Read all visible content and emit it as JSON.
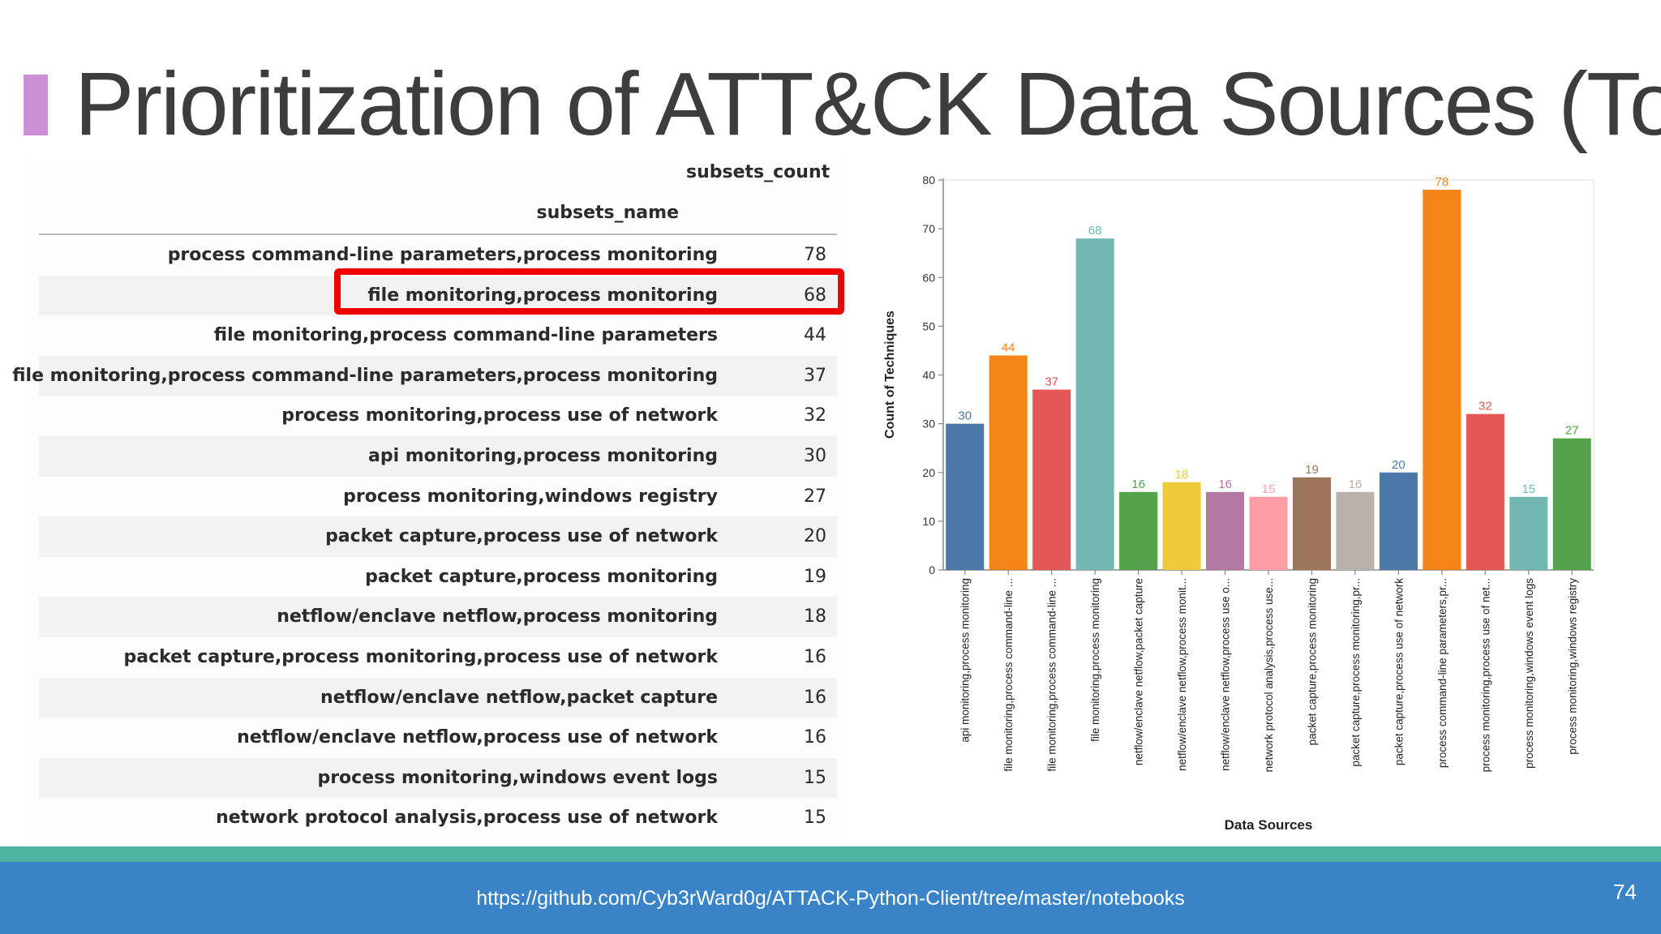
{
  "slide": {
    "title": "Prioritization of ATT&CK Data Sources (Top",
    "page_number": "74",
    "url": "https://github.com/Cyb3rWard0g/ATTACK-Python-Client/tree/master/notebooks"
  },
  "table": {
    "count_header": "subsets_count",
    "name_header": "subsets_name",
    "highlighted_row": "file monitoring,process monitoring",
    "rows": [
      {
        "name": "process command-line parameters,process monitoring",
        "count": "78"
      },
      {
        "name": "file monitoring,process monitoring",
        "count": "68"
      },
      {
        "name": "file monitoring,process command-line parameters",
        "count": "44"
      },
      {
        "name": "file monitoring,process command-line parameters,process monitoring",
        "count": "37"
      },
      {
        "name": "process monitoring,process use of network",
        "count": "32"
      },
      {
        "name": "api monitoring,process monitoring",
        "count": "30"
      },
      {
        "name": "process monitoring,windows registry",
        "count": "27"
      },
      {
        "name": "packet capture,process use of network",
        "count": "20"
      },
      {
        "name": "packet capture,process monitoring",
        "count": "19"
      },
      {
        "name": "netflow/enclave netflow,process monitoring",
        "count": "18"
      },
      {
        "name": "packet capture,process monitoring,process use of network",
        "count": "16"
      },
      {
        "name": "netflow/enclave netflow,packet capture",
        "count": "16"
      },
      {
        "name": "netflow/enclave netflow,process use of network",
        "count": "16"
      },
      {
        "name": "process monitoring,windows event logs",
        "count": "15"
      },
      {
        "name": "network protocol analysis,process use of network",
        "count": "15"
      }
    ]
  },
  "chart_data": {
    "type": "bar",
    "xlabel": "Data Sources",
    "ylabel": "Count of Techniques",
    "ylim": [
      0,
      80
    ],
    "yticks": [
      "0",
      "10",
      "20",
      "30",
      "40",
      "50",
      "60",
      "70",
      "80"
    ],
    "grid": false,
    "categories": [
      "api monitoring,process monitoring",
      "file monitoring,process command-line ...",
      "file monitoring,process command-line ...",
      "file monitoring,process monitoring",
      "netflow/enclave netflow,packet capture",
      "netflow/enclave netflow,process monit...",
      "netflow/enclave netflow,process use o...",
      "network protocol analysis,process use...",
      "packet capture,process monitoring",
      "packet capture,process monitoring,pr...",
      "packet capture,process use of network",
      "process command-line parameters,pr...",
      "process monitoring,process use of net...",
      "process monitoring,windows event logs",
      "process monitoring,windows registry"
    ],
    "values": [
      30,
      44,
      37,
      68,
      16,
      18,
      16,
      15,
      19,
      16,
      20,
      78,
      32,
      15,
      27
    ],
    "value_labels": [
      "30",
      "44",
      "37",
      "68",
      "16",
      "18",
      "16",
      "15",
      "19",
      "16",
      "20",
      "78",
      "32",
      "15",
      "27"
    ],
    "colors": [
      "#4c78a8",
      "#f58518",
      "#e45756",
      "#72b7b2",
      "#54a24b",
      "#eeca3b",
      "#b279a2",
      "#ff9da6",
      "#9d755d",
      "#bab0ac",
      "#4c78a8",
      "#f58518",
      "#e45756",
      "#72b7b2",
      "#54a24b"
    ]
  }
}
